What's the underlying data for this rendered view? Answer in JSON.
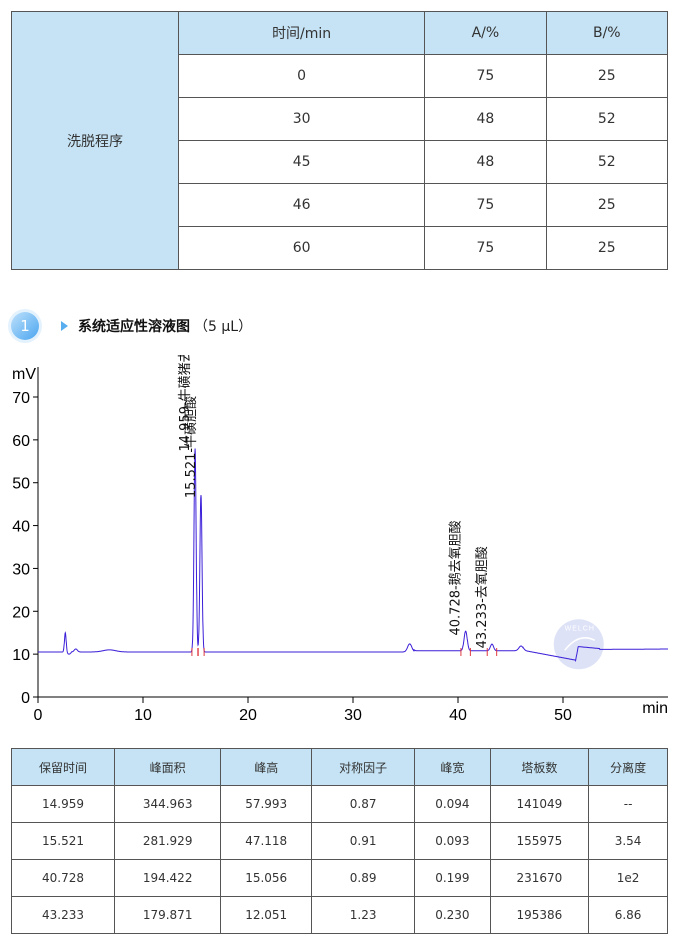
{
  "gradient_table": {
    "row_label": "洗脱程序",
    "headers": [
      "时间/min",
      "A/%",
      "B/%"
    ],
    "rows": [
      [
        "0",
        "75",
        "25"
      ],
      [
        "30",
        "48",
        "52"
      ],
      [
        "45",
        "48",
        "52"
      ],
      [
        "46",
        "75",
        "25"
      ],
      [
        "60",
        "75",
        "25"
      ]
    ]
  },
  "section": {
    "number": "1",
    "title": "系统适应性溶液图",
    "extra": "（5 μL）"
  },
  "chart_data": {
    "type": "line",
    "ylabel": "mV",
    "xlabel": "min",
    "xlim": [
      0,
      60
    ],
    "ylim": [
      0,
      77
    ],
    "x_ticks": [
      0,
      10,
      20,
      30,
      40,
      50
    ],
    "y_ticks": [
      0,
      10,
      20,
      30,
      40,
      50,
      60,
      70
    ],
    "baseline": 10.5,
    "peaks": [
      {
        "label": "14.959-牛磺猪去氧胆酸",
        "rt": 14.959,
        "height": 57.993
      },
      {
        "label": "15.521-牛磺胆酸",
        "rt": 15.521,
        "height": 47.118
      },
      {
        "label": "40.728-鹅去氧胆酸",
        "rt": 40.728,
        "height": 15.056
      },
      {
        "label": "43.233-去氧胆酸",
        "rt": 43.233,
        "height": 12.051
      }
    ],
    "minor_features": [
      {
        "x": 2.6,
        "y": 15
      },
      {
        "x": 35.4,
        "y": 12.4
      },
      {
        "x": 46,
        "y": 11.6
      }
    ],
    "line_color": "#3a1fd8",
    "marker_color": "#e0383f",
    "watermark": "WELCH"
  },
  "results_table": {
    "headers": [
      "保留时间",
      "峰面积",
      "峰高",
      "对称因子",
      "峰宽",
      "塔板数",
      "分离度"
    ],
    "rows": [
      [
        "14.959",
        "344.963",
        "57.993",
        "0.87",
        "0.094",
        "141049",
        "--"
      ],
      [
        "15.521",
        "281.929",
        "47.118",
        "0.91",
        "0.093",
        "155975",
        "3.54"
      ],
      [
        "40.728",
        "194.422",
        "15.056",
        "0.89",
        "0.199",
        "231670",
        "1e2"
      ],
      [
        "43.233",
        "179.871",
        "12.051",
        "1.23",
        "0.230",
        "195386",
        "6.86"
      ]
    ]
  }
}
